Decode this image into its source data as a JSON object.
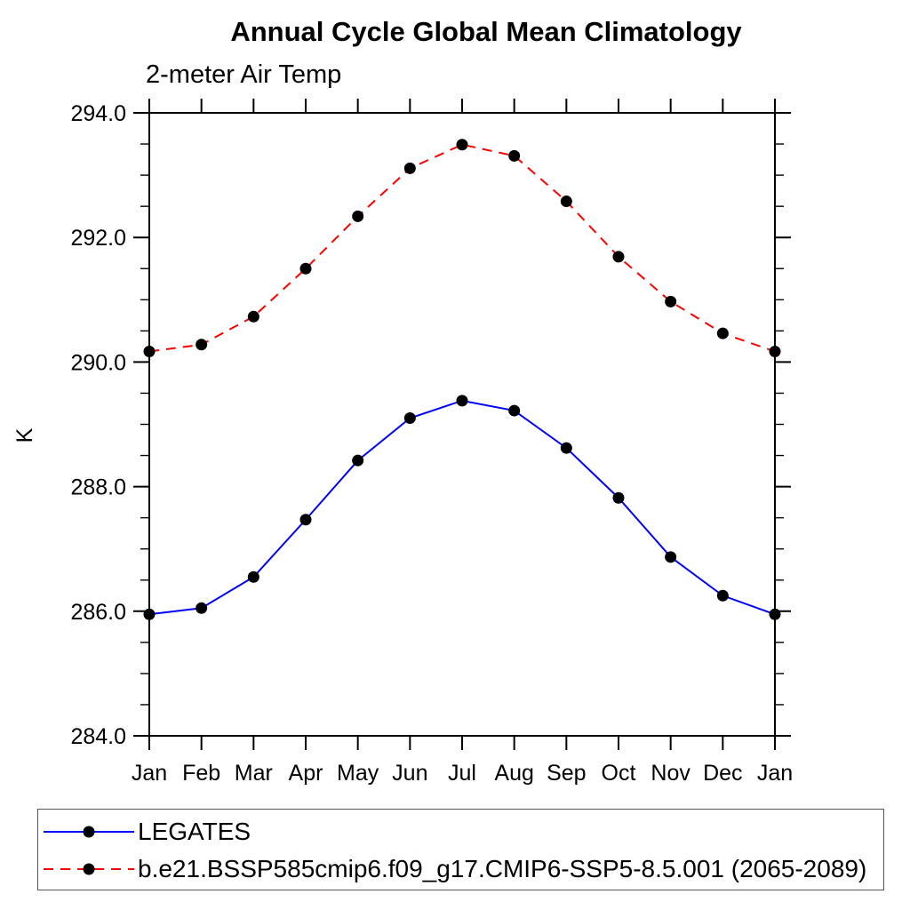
{
  "accent_colors": {
    "series1": "#0000ff",
    "series2": "#ff0000",
    "marker": "#000000",
    "axis": "#000000"
  },
  "chart_data": {
    "type": "line",
    "title": "Annual Cycle Global Mean Climatology",
    "subtitle": "2-meter Air Temp",
    "ylabel": "K",
    "categories": [
      "Jan",
      "Feb",
      "Mar",
      "Apr",
      "May",
      "Jun",
      "Jul",
      "Aug",
      "Sep",
      "Oct",
      "Nov",
      "Dec",
      "Jan"
    ],
    "ylim": [
      284.0,
      294.0
    ],
    "ytick_interval": 2.0,
    "ytick_minor_interval": 0.5,
    "ytick_labels": [
      "284.0",
      "286.0",
      "288.0",
      "290.0",
      "292.0",
      "294.0"
    ],
    "grid": false,
    "legend_position": "bottom",
    "series": [
      {
        "name": "LEGATES",
        "color": "#0000ff",
        "style": "solid",
        "marker": "filled-circle",
        "marker_color": "#000000",
        "values": [
          285.95,
          286.05,
          286.55,
          287.47,
          288.42,
          289.1,
          289.38,
          289.22,
          288.62,
          287.82,
          286.87,
          286.25,
          285.95
        ]
      },
      {
        "name": "b.e21.BSSP585cmip6.f09_g17.CMIP6-SSP5-8.5.001 (2065-2089)",
        "color": "#ff0000",
        "style": "dashed",
        "marker": "filled-circle",
        "marker_color": "#000000",
        "values": [
          290.17,
          290.28,
          290.73,
          291.5,
          292.34,
          293.11,
          293.49,
          293.31,
          292.58,
          291.69,
          290.97,
          290.46,
          290.17
        ]
      }
    ]
  }
}
